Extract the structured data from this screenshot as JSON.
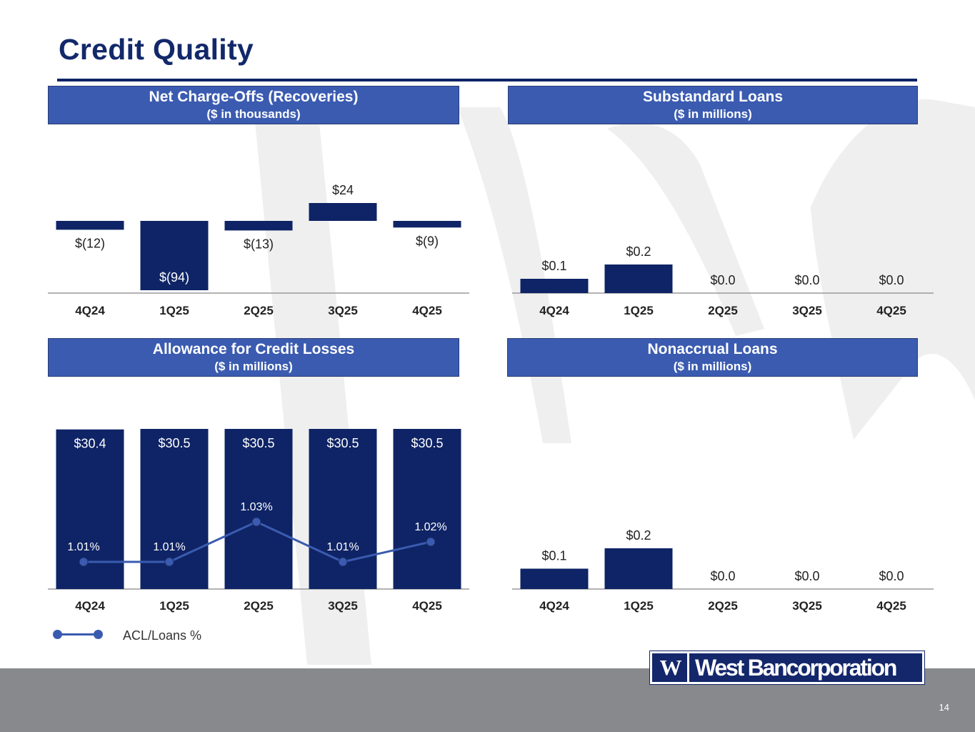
{
  "page": {
    "title": "Credit Quality",
    "page_number": "14"
  },
  "logo": {
    "mark": "W",
    "text": "West Bancorporation"
  },
  "colors": {
    "bar": "#0f2466",
    "header": "#3a5bb0",
    "line": "#3a5bb0",
    "footer": "#88898d"
  },
  "legend": {
    "label": "ACL/Loans %"
  },
  "chart_data": [
    {
      "id": "nco",
      "type": "bar",
      "title": "Net Charge-Offs (Recoveries)",
      "subtitle": "($ in thousands)",
      "categories": [
        "4Q24",
        "1Q25",
        "2Q25",
        "3Q25",
        "4Q25"
      ],
      "values": [
        -12,
        -94,
        -13,
        24,
        -9
      ],
      "labels": [
        "$(12)",
        "$(94)",
        "$(13)",
        "$24",
        "$(9)"
      ],
      "ylim": [
        -100,
        30
      ]
    },
    {
      "id": "substandard",
      "type": "bar",
      "title": "Substandard Loans",
      "subtitle": "($ in millions)",
      "categories": [
        "4Q24",
        "1Q25",
        "2Q25",
        "3Q25",
        "4Q25"
      ],
      "values": [
        0.1,
        0.2,
        0.0,
        0.0,
        0.0
      ],
      "labels": [
        "$0.1",
        "$0.2",
        "$0.0",
        "$0.0",
        "$0.0"
      ],
      "ylim": [
        0,
        0.35
      ]
    },
    {
      "id": "acl",
      "type": "bar",
      "title": "Allowance for Credit Losses",
      "subtitle": "($ in millions)",
      "categories": [
        "4Q24",
        "1Q25",
        "2Q25",
        "3Q25",
        "4Q25"
      ],
      "values": [
        30.4,
        30.5,
        30.5,
        30.5,
        30.5
      ],
      "labels": [
        "$30.4",
        "$30.5",
        "$30.5",
        "$30.5",
        "$30.5"
      ],
      "ylim": [
        0,
        30.6
      ],
      "series": [
        {
          "name": "ACL/Loans %",
          "type": "line",
          "values": [
            1.01,
            1.01,
            1.03,
            1.01,
            1.02
          ],
          "labels": [
            "1.01%",
            "1.01%",
            "1.03%",
            "1.01%",
            "1.02%"
          ]
        }
      ]
    },
    {
      "id": "nonaccrual",
      "type": "bar",
      "title": "Nonaccrual Loans",
      "subtitle": "($ in millions)",
      "categories": [
        "4Q24",
        "1Q25",
        "2Q25",
        "3Q25",
        "4Q25"
      ],
      "values": [
        0.1,
        0.2,
        0.0,
        0.0,
        0.0
      ],
      "labels": [
        "$0.1",
        "$0.2",
        "$0.0",
        "$0.0",
        "$0.0"
      ],
      "ylim": [
        0,
        0.35
      ]
    }
  ]
}
